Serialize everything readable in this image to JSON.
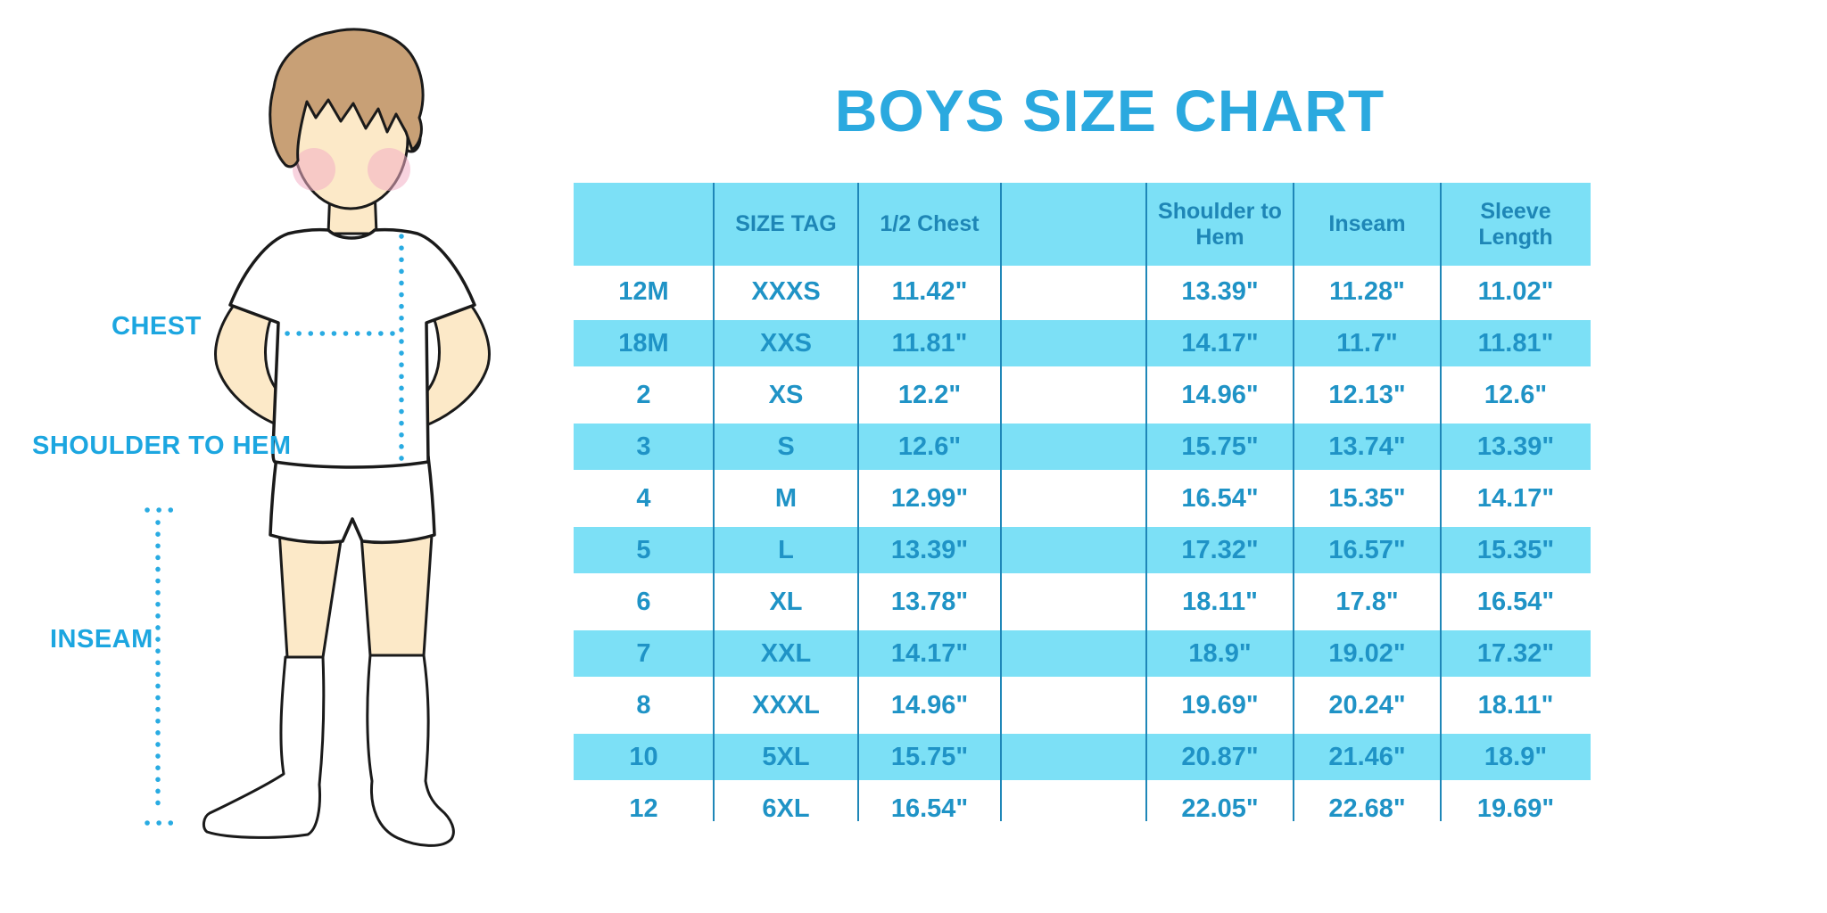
{
  "title": "BOYS SIZE CHART",
  "diagram": {
    "labels": {
      "chest": "CHEST",
      "shoulder_to_hem": "SHOULDER TO HEM",
      "inseam": "INSEAM"
    }
  },
  "chart_data": {
    "type": "table",
    "title": "BOYS SIZE CHART",
    "columns": [
      "",
      "SIZE TAG",
      "1/2 Chest",
      "Shoulder to Hem",
      "Inseam",
      "Sleeve Length"
    ],
    "rows": [
      [
        "12M",
        "XXXS",
        "11.42\"",
        "13.39\"",
        "11.28\"",
        "11.02\""
      ],
      [
        "18M",
        "XXS",
        "11.81\"",
        "14.17\"",
        "11.7\"",
        "11.81\""
      ],
      [
        "2",
        "XS",
        "12.2\"",
        "14.96\"",
        "12.13\"",
        "12.6\""
      ],
      [
        "3",
        "S",
        "12.6\"",
        "15.75\"",
        "13.74\"",
        "13.39\""
      ],
      [
        "4",
        "M",
        "12.99\"",
        "16.54\"",
        "15.35\"",
        "14.17\""
      ],
      [
        "5",
        "L",
        "13.39\"",
        "17.32\"",
        "16.57\"",
        "15.35\""
      ],
      [
        "6",
        "XL",
        "13.78\"",
        "18.11\"",
        "17.8\"",
        "16.54\""
      ],
      [
        "7",
        "XXL",
        "14.17\"",
        "18.9\"",
        "19.02\"",
        "17.32\""
      ],
      [
        "8",
        "XXXL",
        "14.96\"",
        "19.69\"",
        "20.24\"",
        "18.11\""
      ],
      [
        "10",
        "5XL",
        "15.75\"",
        "20.87\"",
        "21.46\"",
        "18.9\""
      ],
      [
        "12",
        "6XL",
        "16.54\"",
        "22.05\"",
        "22.68\"",
        "19.69\""
      ]
    ],
    "units": "inches",
    "layout": {
      "grid": false,
      "alternating_row_fill": true
    }
  },
  "colors": {
    "title_blue": "#2BA9DF",
    "label_blue": "#1CA6E0",
    "dotted_line_blue": "#29ABE2",
    "table_fill_blue": "#7CE0F6",
    "table_line_blue": "#1F87B8",
    "table_text_blue": "#1F93C6",
    "skin": "#FCE9C8",
    "hair": "#C8A076",
    "blush": "#F3AFC5",
    "outline": "#1A1A1A"
  }
}
